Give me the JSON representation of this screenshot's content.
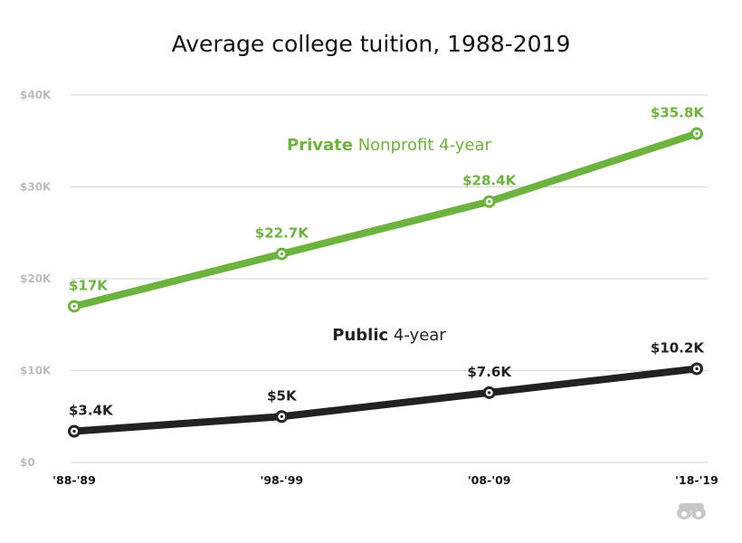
{
  "title": "Average college tuition, 1988-2019",
  "chart_data": {
    "type": "line",
    "title": "Average college tuition, 1988-2019",
    "xlabel": "",
    "ylabel": "",
    "categories": [
      "'88-'89",
      "'98-'99",
      "'08-'09",
      "'18-'19"
    ],
    "ylim": [
      0,
      40
    ],
    "yticks": [
      {
        "value": 0,
        "label": "$0"
      },
      {
        "value": 10,
        "label": "$10K"
      },
      {
        "value": 20,
        "label": "$20K"
      },
      {
        "value": 30,
        "label": "$30K"
      },
      {
        "value": 40,
        "label": "$40K"
      }
    ],
    "grid": true,
    "series": [
      {
        "bold": "Private",
        "rest": "Nonprofit 4-year",
        "color": "#6db33f",
        "values": [
          17,
          22.7,
          28.4,
          35.8
        ],
        "labels": [
          "$17K",
          "$22.7K",
          "$28.4K",
          "$35.8K"
        ]
      },
      {
        "bold": "Public",
        "rest": "4-year",
        "color": "#222222",
        "values": [
          3.4,
          5,
          7.6,
          10.2
        ],
        "labels": [
          "$3.4K",
          "$5K",
          "$7.6K",
          "$10.2K"
        ]
      }
    ]
  },
  "logo": {
    "icon": "binoculars-logo-icon"
  }
}
